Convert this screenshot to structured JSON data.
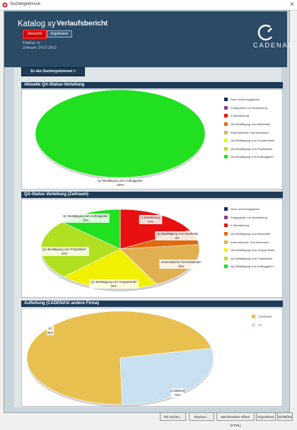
{
  "window": {
    "title": "Suchergebnisse"
  },
  "header": {
    "catalog": "Katalog xy",
    "report_title": "Verlaufsbericht",
    "tabs": [
      "Übersicht",
      "Ergebnisse"
    ],
    "meta_line1": "Katalog: xy",
    "meta_line2": "Zeitraum:   24.07.2013",
    "logo_text": "CADENAS"
  },
  "results_button": "Zu den Suchergebnissen >",
  "colors": {
    "header": "#2a4a66",
    "section": "#1e3c58",
    "active_tab": "#cc0000"
  },
  "legend_status": [
    {
      "label": "Noch nicht freigegeben",
      "color": "#1a2a5a"
    },
    {
      "label": "Freigegeben zur Bearbeitung",
      "color": "#8a3c8c"
    },
    {
      "label": "In Bearbeitung",
      "color": "#e81010"
    },
    {
      "label": "QA-Bestätigung vom Bearbeiter",
      "color": "#e06a10"
    },
    {
      "label": "Automatischen Test bestanden",
      "color": "#e0b050"
    },
    {
      "label": "QA-Bestätigung vom Gruppenleiter",
      "color": "#f0f000"
    },
    {
      "label": "QA-Bestätigung vom Projektleiter",
      "color": "#b0e020"
    },
    {
      "label": "QA-Bestätigung vom Auftraggeber",
      "color": "#20e020"
    }
  ],
  "sections": [
    {
      "title": "Aktuelle QA-Status-Verteilung"
    },
    {
      "title": "QA-Status Verteilung (Zeitraum)"
    },
    {
      "title": "Aufteilung (CADENAS/ andere Firma)"
    }
  ],
  "chart_data": [
    {
      "type": "pie",
      "title": "Aktuelle QA-Status-Verteilung",
      "slices": [
        {
          "label": "QA-Bestätigung vom Auftraggeber",
          "value": 100,
          "display": "100%",
          "color": "#20e020"
        }
      ]
    },
    {
      "type": "pie",
      "title": "QA-Status Verteilung (Zeitraum)",
      "slices": [
        {
          "label": "In Bearbeitung",
          "value": 17,
          "display": "17%",
          "color": "#e81010"
        },
        {
          "label": "QA-Bestätigung vom Bearbeiter",
          "value": 6,
          "display": "6%",
          "color": "#e06a10"
        },
        {
          "label": "Automatischen Test bestanden",
          "value": 19,
          "display": "19%",
          "color": "#e0b050"
        },
        {
          "label": "QA-Bestätigung vom Gruppenleiter",
          "value": 20,
          "display": "20%",
          "color": "#f0f000"
        },
        {
          "label": "QA-Bestätigung vom Projektleiter",
          "value": 24,
          "display": "24%",
          "color": "#b0e020"
        },
        {
          "label": "QA-Bestätigung vom Auftraggeber",
          "value": 13,
          "display": "13%",
          "color": "#20e020"
        }
      ]
    },
    {
      "type": "pie",
      "title": "Aufteilung (CADENAS/ andere Firma)",
      "slices": [
        {
          "label": "CADENAS",
          "value": 72,
          "display": "72%",
          "color": "#e8c050"
        },
        {
          "label": "XY",
          "value": 28,
          "display": "28%",
          "color": "#c8e0f0"
        }
      ]
    }
  ],
  "footer": {
    "buttons": [
      "Teil suchen...",
      "Drucken...",
      "Berichtordner öffnen (HTML)",
      "Exportieren",
      "Schließen"
    ]
  }
}
